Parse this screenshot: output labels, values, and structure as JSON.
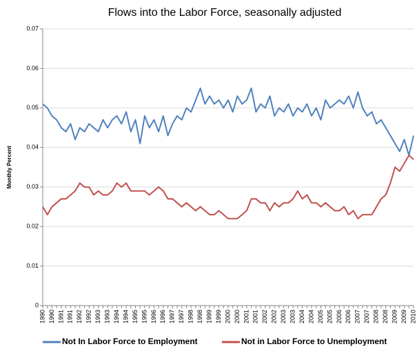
{
  "chart_data": {
    "type": "line",
    "title": "Flows into the Labor Force, seasonally adjusted",
    "y_label": "Monthly Percent",
    "categories": [
      "1990",
      null,
      "1990",
      null,
      "1991",
      null,
      "1991",
      null,
      "1992",
      null,
      "1992",
      null,
      "1993",
      null,
      "1993",
      null,
      "1994",
      null,
      "1994",
      null,
      "1995",
      null,
      "1995",
      null,
      "1996",
      null,
      "1996",
      null,
      "1997",
      null,
      "1997",
      null,
      "1998",
      null,
      "1998",
      null,
      "1999",
      null,
      "1999",
      null,
      "2000",
      null,
      "2000",
      null,
      "2001",
      null,
      "2001",
      null,
      "2002",
      null,
      "2002",
      null,
      "2003",
      null,
      "2003",
      null,
      "2004",
      null,
      "2004",
      null,
      "2005",
      null,
      "2005",
      null,
      "2006",
      null,
      "2006",
      null,
      "2007",
      null,
      "2007",
      null,
      "2008",
      null,
      "2008",
      null,
      "2009",
      null,
      "2009",
      null,
      "2010"
    ],
    "series": [
      {
        "name": "Not In Labor Force to Employment",
        "color": "#4f81bd",
        "values": [
          0.051,
          0.05,
          0.048,
          0.047,
          0.045,
          0.044,
          0.046,
          0.042,
          0.045,
          0.044,
          0.046,
          0.045,
          0.044,
          0.047,
          0.045,
          0.047,
          0.048,
          0.046,
          0.049,
          0.044,
          0.047,
          0.041,
          0.048,
          0.045,
          0.047,
          0.044,
          0.048,
          0.043,
          0.046,
          0.048,
          0.047,
          0.05,
          0.049,
          0.052,
          0.055,
          0.051,
          0.053,
          0.051,
          0.052,
          0.05,
          0.052,
          0.049,
          0.053,
          0.051,
          0.052,
          0.055,
          0.049,
          0.051,
          0.05,
          0.053,
          0.048,
          0.05,
          0.049,
          0.051,
          0.048,
          0.05,
          0.049,
          0.051,
          0.048,
          0.05,
          0.047,
          0.052,
          0.05,
          0.051,
          0.052,
          0.051,
          0.053,
          0.05,
          0.054,
          0.05,
          0.048,
          0.049,
          0.046,
          0.047,
          0.045,
          0.043,
          0.041,
          0.039,
          0.042,
          0.038,
          0.043
        ]
      },
      {
        "name": "Not in Labor Force to Unemployment",
        "color": "#c0504d",
        "values": [
          0.025,
          0.023,
          0.025,
          0.026,
          0.027,
          0.027,
          0.028,
          0.029,
          0.031,
          0.03,
          0.03,
          0.028,
          0.029,
          0.028,
          0.028,
          0.029,
          0.031,
          0.03,
          0.031,
          0.029,
          0.029,
          0.029,
          0.029,
          0.028,
          0.029,
          0.03,
          0.029,
          0.027,
          0.027,
          0.026,
          0.025,
          0.026,
          0.025,
          0.024,
          0.025,
          0.024,
          0.023,
          0.023,
          0.024,
          0.023,
          0.022,
          0.022,
          0.022,
          0.023,
          0.024,
          0.027,
          0.027,
          0.026,
          0.026,
          0.024,
          0.026,
          0.025,
          0.026,
          0.026,
          0.027,
          0.029,
          0.027,
          0.028,
          0.026,
          0.026,
          0.025,
          0.026,
          0.025,
          0.024,
          0.024,
          0.025,
          0.023,
          0.024,
          0.022,
          0.023,
          0.023,
          0.023,
          0.025,
          0.027,
          0.028,
          0.031,
          0.035,
          0.034,
          0.036,
          0.038,
          0.037
        ]
      }
    ],
    "ylim": [
      0,
      0.07
    ],
    "yticks": [
      0,
      0.01,
      0.02,
      0.03,
      0.04,
      0.05,
      0.06,
      0.07
    ],
    "grid": true,
    "legend": "bottom"
  }
}
